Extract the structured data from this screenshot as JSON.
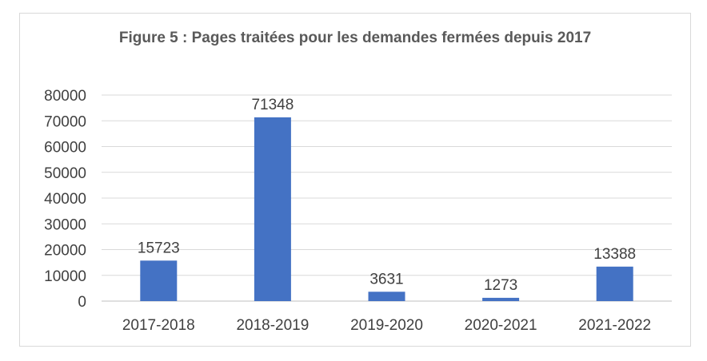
{
  "chart_data": {
    "type": "bar",
    "title": "Figure 5 : Pages traitées pour les demandes fermées depuis 2017",
    "categories": [
      "2017-2018",
      "2018-2019",
      "2019-2020",
      "2020-2021",
      "2021-2022"
    ],
    "values": [
      15723,
      71348,
      3631,
      1273,
      13388
    ],
    "ylim": [
      0,
      80000
    ],
    "yticks": [
      0,
      10000,
      20000,
      30000,
      40000,
      50000,
      60000,
      70000,
      80000
    ],
    "grid": true,
    "bar_color": "#4472c4",
    "xlabel": "",
    "ylabel": ""
  }
}
